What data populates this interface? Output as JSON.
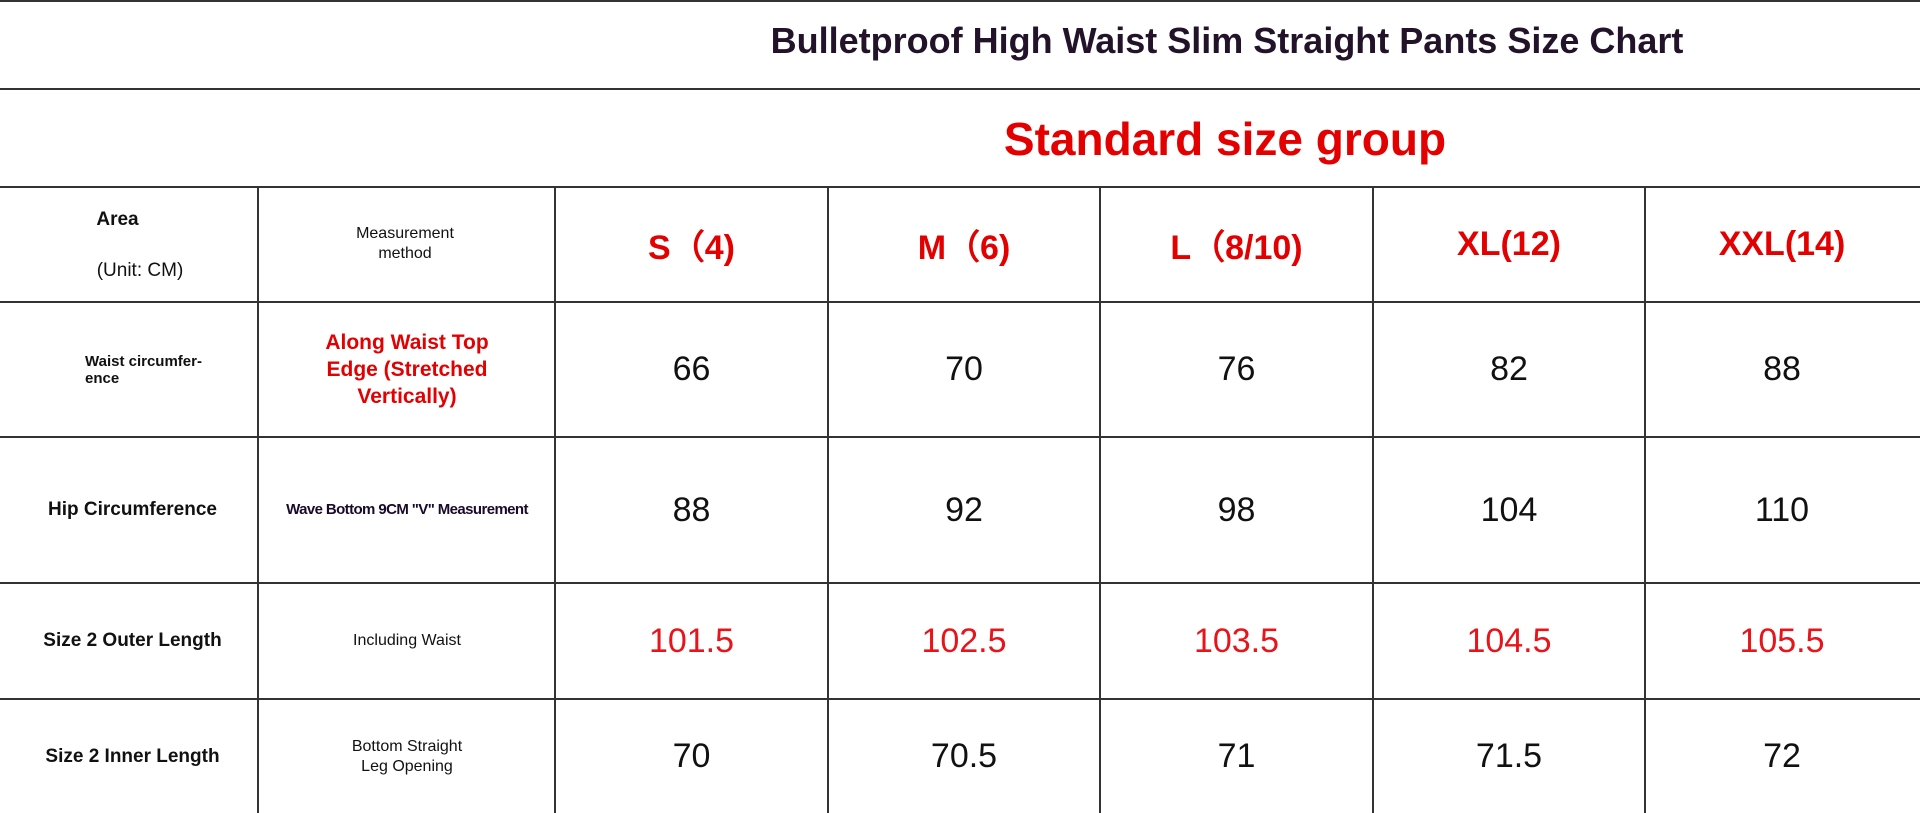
{
  "title": "Bulletproof High Waist Slim Straight Pants Size Chart",
  "group": "Standard size group",
  "header": {
    "area": "Area",
    "unit": "(Unit: CM)",
    "method": "Measurement method",
    "sizes": [
      "S（4)",
      "M（6)",
      "L（8/10)",
      "XL(12)",
      "XXL(14)"
    ]
  },
  "rows": [
    {
      "area": "Waist circumfer-ence",
      "method": "Along Waist Top Edge (Stretched Vertically)",
      "values": [
        "66",
        "70",
        "76",
        "82",
        "88"
      ]
    },
    {
      "area": "Hip Circumference",
      "method": "Wave Bottom 9CM \"V\" Measurement",
      "values": [
        "88",
        "92",
        "98",
        "104",
        "110"
      ]
    },
    {
      "area": "Size 2 Outer Length",
      "method": "Including Waist",
      "values": [
        "101.5",
        "102.5",
        "103.5",
        "104.5",
        "105.5"
      ]
    },
    {
      "area": "Size 2 Inner Length",
      "method": "Bottom Straight Leg Opening",
      "values": [
        "70",
        "70.5",
        "71",
        "71.5",
        "72"
      ]
    }
  ],
  "colors": {
    "accent_red": "#e30000",
    "title": "#22122a"
  }
}
